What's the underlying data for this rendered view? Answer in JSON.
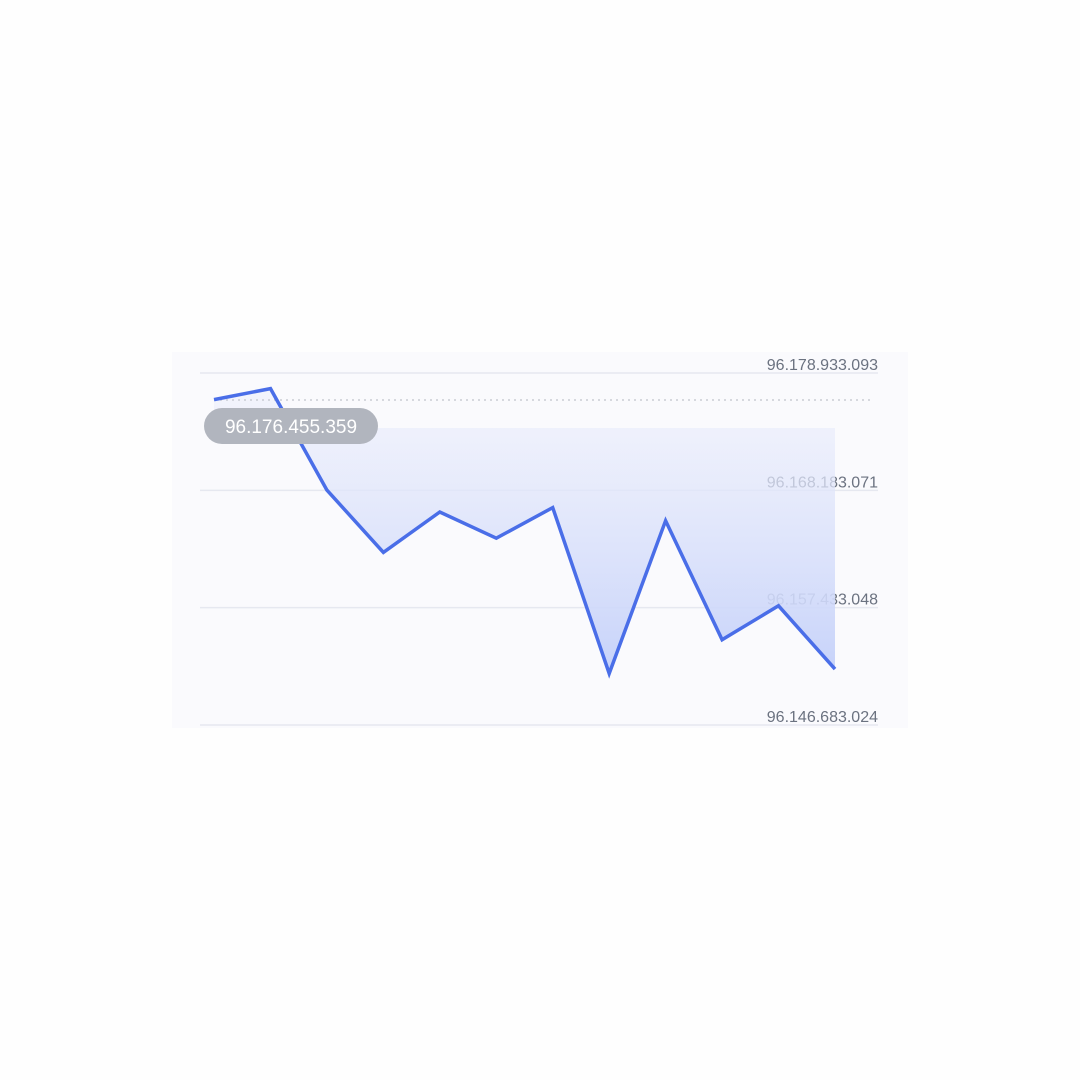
{
  "chart_data": {
    "type": "area",
    "title": "",
    "xlabel": "",
    "ylabel": "",
    "y_axis_position": "right",
    "grid": true,
    "legend": "none",
    "ylim": [
      96.146683024,
      96.178933093
    ],
    "y_ticks": [
      96.178933093,
      96.168183071,
      96.157433048,
      96.146683024
    ],
    "y_tick_labels": [
      "96.178.933.093",
      "96.168.183.071",
      "96.157.433.048",
      "96.146.683.024"
    ],
    "x": [
      0,
      1,
      2,
      3,
      4,
      5,
      6,
      7,
      8,
      9,
      10,
      11
    ],
    "series": [
      {
        "values": [
          96.1765,
          96.1775,
          96.1682,
          96.1625,
          96.1662,
          96.1638,
          96.1666,
          96.1514,
          96.1654,
          96.1545,
          96.1576,
          96.1518
        ],
        "color": "#4a6ee8"
      }
    ],
    "reference_line": {
      "value": 96.176455359,
      "label": "96.176.455.359",
      "style": "dotted"
    },
    "colors": {
      "line": "#4a6ee8",
      "fill_top": "#eef0fb",
      "fill_bottom": "#c6d2fa",
      "grid": "#e6e8f0",
      "reference": "#c9ccd4",
      "badge": "#b1b5be",
      "badge_text": "#ffffff",
      "tick_text": "#6b7280",
      "card": "#fafafd"
    }
  }
}
